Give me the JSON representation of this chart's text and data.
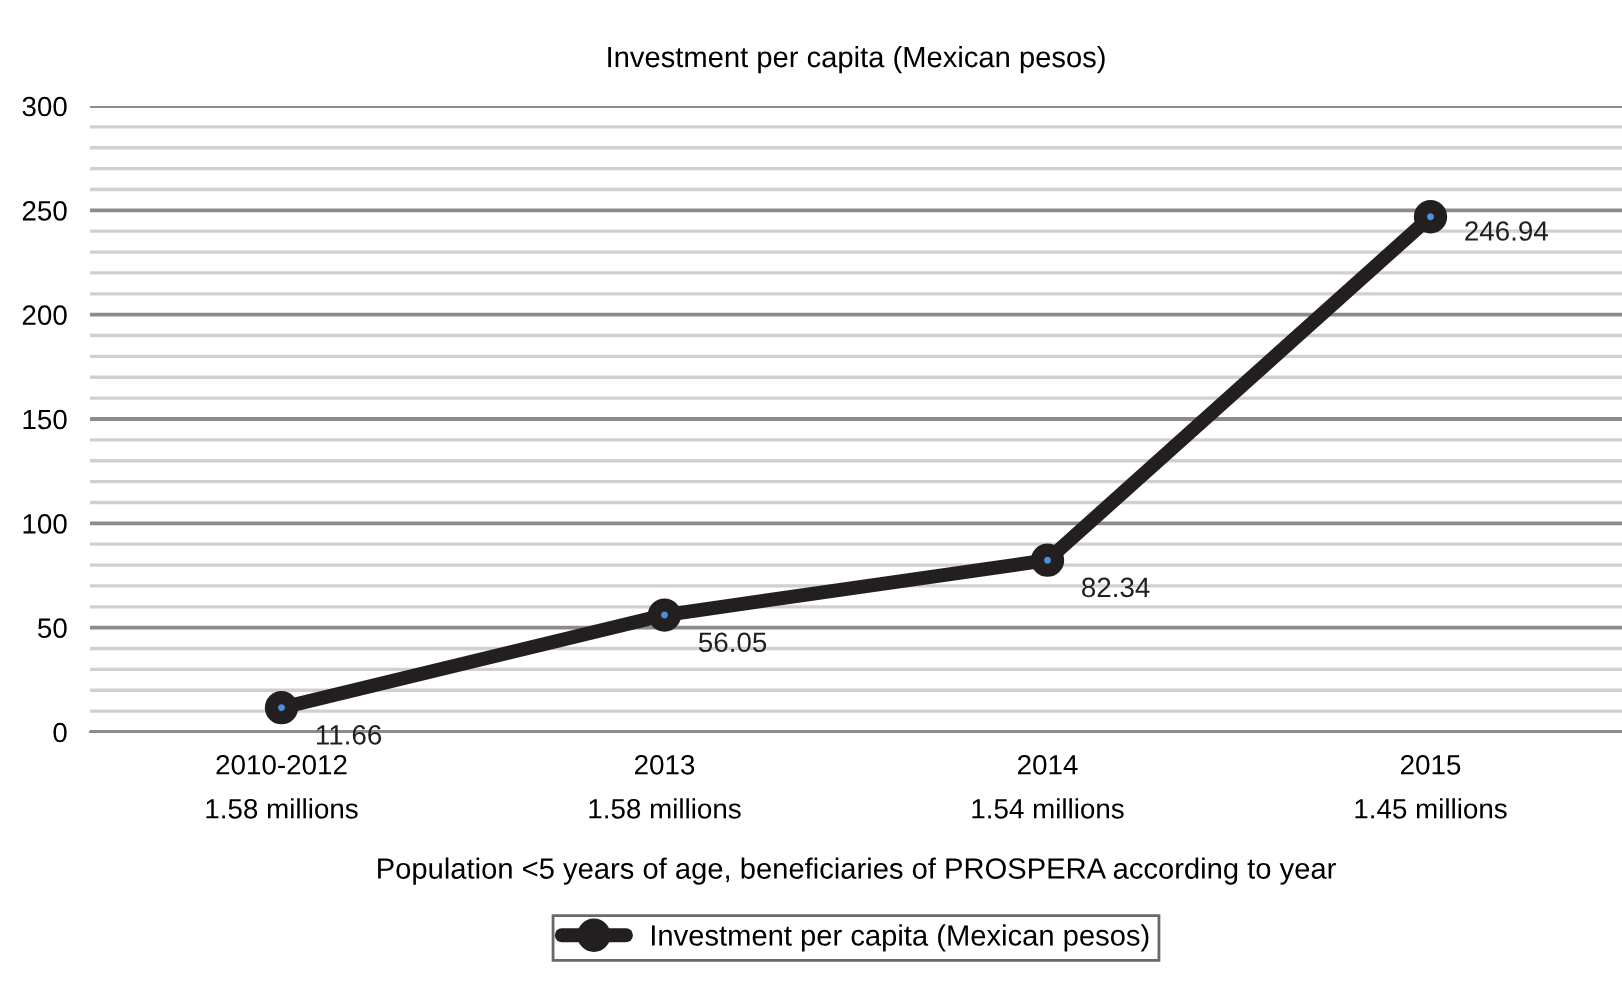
{
  "chart_data": {
    "type": "line",
    "title": "Investment per capita (Mexican pesos)",
    "xlabel": "Population <5 years of age, beneficiaries of PROSPERA according to year",
    "categories": [
      "2010-2012\n1.58 millions",
      "2013\n1.58 millions",
      "2014\n1.54 millions",
      "2015\n1.45 millions"
    ],
    "series": [
      {
        "name": "Investment per capita (Mexican pesos)",
        "color": "#231f20",
        "values": [
          11.66,
          56.05,
          82.34,
          246.94
        ]
      }
    ],
    "ylim": [
      0,
      300
    ],
    "yticks": [
      0,
      {
        "value": 10,
        "label": null
      },
      {
        "value": 20,
        "label": null
      },
      {
        "value": 30,
        "label": null
      },
      {
        "value": 40,
        "label": null
      },
      50,
      {
        "value": 60,
        "label": null
      },
      {
        "value": 70,
        "label": null
      },
      {
        "value": 80,
        "label": null
      },
      {
        "value": 90,
        "label": null
      },
      100,
      {
        "value": 110,
        "label": null
      },
      {
        "value": 120,
        "label": null
      },
      {
        "value": 130,
        "label": null
      },
      {
        "value": 140,
        "label": null
      },
      150,
      {
        "value": 160,
        "label": null
      },
      {
        "value": 170,
        "label": null
      },
      {
        "value": 180,
        "label": null
      },
      {
        "value": 190,
        "label": null
      },
      200,
      {
        "value": 210,
        "label": null
      },
      {
        "value": 220,
        "label": null
      },
      {
        "value": 230,
        "label": null
      },
      {
        "value": 240,
        "label": null
      },
      250,
      {
        "value": 260,
        "label": null
      },
      {
        "value": 270,
        "label": null
      },
      {
        "value": 280,
        "label": null
      },
      {
        "value": 290,
        "label": null
      },
      300
    ],
    "grid": "y",
    "legend": "bottom",
    "marker": "circle",
    "line_style": "solid",
    "data_labels": true
  }
}
